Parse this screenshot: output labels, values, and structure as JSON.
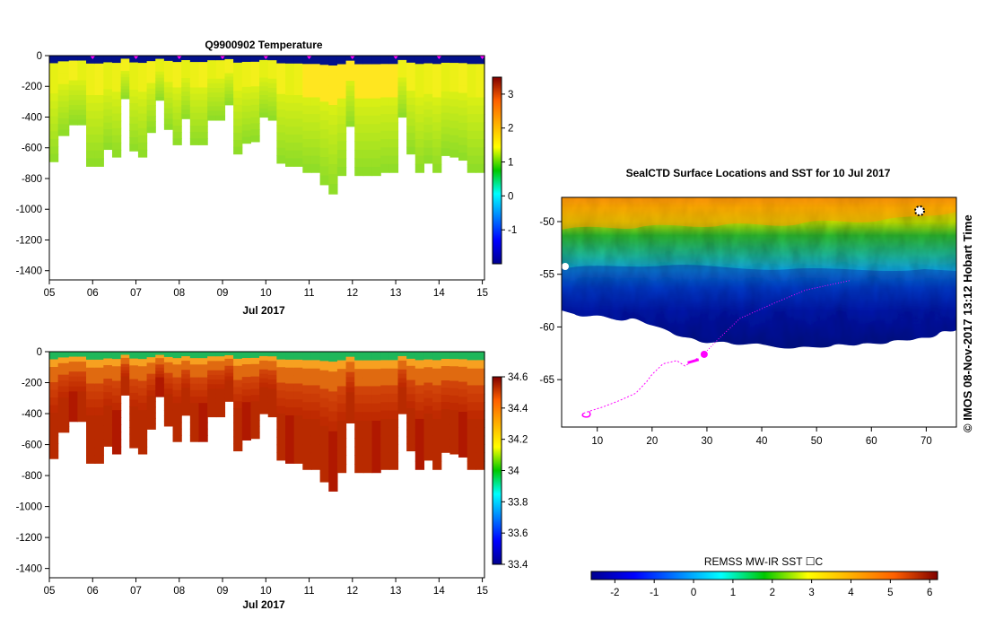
{
  "chart_data": [
    {
      "type": "heatmap",
      "id": "temp",
      "title": "Q9900902  Temperature",
      "xlabel": "Jul 2017",
      "ylabel": "",
      "x_ticks": [
        "05",
        "06",
        "07",
        "08",
        "09",
        "10",
        "11",
        "12",
        "13",
        "14",
        "15"
      ],
      "xlim": [
        5,
        15.05
      ],
      "y_ticks": [
        "0",
        "-200",
        "-400",
        "-600",
        "-800",
        "-1000",
        "-1200",
        "-1400"
      ],
      "ylim": [
        -1460,
        0
      ],
      "colorbar": {
        "ticks": [
          "-1",
          "0",
          "1",
          "2",
          "3"
        ],
        "range": [
          -2.0,
          3.5
        ]
      },
      "profile_days": [
        5.0,
        5.2,
        5.45,
        5.65,
        5.85,
        6.05,
        6.25,
        6.45,
        6.65,
        6.85,
        7.05,
        7.25,
        7.45,
        7.65,
        7.85,
        8.05,
        8.25,
        8.45,
        8.65,
        8.85,
        9.05,
        9.25,
        9.45,
        9.65,
        9.85,
        10.05,
        10.25,
        10.45,
        10.65,
        10.85,
        11.05,
        11.25,
        11.45,
        11.65,
        11.85,
        12.05,
        12.25,
        12.45,
        12.65,
        12.85,
        13.05,
        13.25,
        13.45,
        13.65,
        13.85,
        14.05,
        14.25,
        14.45,
        14.65,
        14.85
      ],
      "profile_max_depth_m": [
        690,
        520,
        450,
        450,
        720,
        720,
        610,
        660,
        280,
        620,
        660,
        500,
        290,
        480,
        580,
        410,
        580,
        580,
        420,
        420,
        320,
        640,
        570,
        560,
        400,
        420,
        700,
        720,
        720,
        760,
        760,
        840,
        900,
        780,
        460,
        780,
        780,
        780,
        760,
        760,
        400,
        640,
        760,
        700,
        760,
        650,
        660,
        680,
        760,
        760
      ],
      "surface_temperature_c": -1.8,
      "deep_temperature_c": 1.2,
      "position_markers_days": [
        6.0,
        7.0,
        8.0,
        9.0,
        10.0,
        11.0,
        12.0,
        13.0,
        14.0,
        15.0
      ]
    },
    {
      "type": "heatmap",
      "id": "salinity",
      "title": "",
      "xlabel": "Jul 2017",
      "ylabel": "",
      "x_ticks": [
        "05",
        "06",
        "07",
        "08",
        "09",
        "10",
        "11",
        "12",
        "13",
        "14",
        "15"
      ],
      "xlim": [
        5,
        15.05
      ],
      "y_ticks": [
        "0",
        "-200",
        "-400",
        "-600",
        "-800",
        "-1000",
        "-1200",
        "-1400"
      ],
      "ylim": [
        -1460,
        0
      ],
      "colorbar": {
        "ticks": [
          "33.4",
          "33.6",
          "33.8",
          "34",
          "34.2",
          "34.4",
          "34.6"
        ],
        "range": [
          33.4,
          34.6
        ]
      },
      "profile_days": [
        5.0,
        5.2,
        5.45,
        5.65,
        5.85,
        6.05,
        6.25,
        6.45,
        6.65,
        6.85,
        7.05,
        7.25,
        7.45,
        7.65,
        7.85,
        8.05,
        8.25,
        8.45,
        8.65,
        8.85,
        9.05,
        9.25,
        9.45,
        9.65,
        9.85,
        10.05,
        10.25,
        10.45,
        10.65,
        10.85,
        11.05,
        11.25,
        11.45,
        11.65,
        11.85,
        12.05,
        12.25,
        12.45,
        12.65,
        12.85,
        13.05,
        13.25,
        13.45,
        13.65,
        13.85,
        14.05,
        14.25,
        14.45,
        14.65,
        14.85
      ],
      "profile_max_depth_m": [
        690,
        520,
        450,
        450,
        720,
        720,
        610,
        660,
        280,
        620,
        660,
        500,
        290,
        480,
        580,
        410,
        580,
        580,
        420,
        420,
        320,
        640,
        570,
        560,
        400,
        420,
        700,
        720,
        720,
        760,
        760,
        840,
        900,
        780,
        460,
        780,
        780,
        780,
        760,
        760,
        400,
        640,
        760,
        700,
        760,
        650,
        660,
        680,
        760,
        760
      ],
      "surface_salinity_psu": 33.95,
      "deep_salinity_psu": 34.6
    },
    {
      "type": "heatmap",
      "id": "sst-map",
      "title": "SealCTD Surface Locations and SST for 10 Jul 2017",
      "xlabel": "",
      "ylabel": "",
      "x_ticks": [
        "10",
        "20",
        "30",
        "40",
        "50",
        "60",
        "70"
      ],
      "xlim": [
        3.5,
        75.5
      ],
      "y_ticks": [
        "-50",
        "-55",
        "-60",
        "-65"
      ],
      "ylim": [
        -69.5,
        -47.7
      ],
      "colorbar": {
        "label": "REMSS MW-IR SST ☐C",
        "ticks": [
          "-2",
          "-1",
          "0",
          "1",
          "2",
          "3",
          "4",
          "5",
          "6"
        ],
        "range": [
          -2.6,
          6.2
        ]
      },
      "track_color": "#ff00ff",
      "track_lon_lat": [
        [
          7.5,
          -68.2
        ],
        [
          8.5,
          -68.0
        ],
        [
          11,
          -67.6
        ],
        [
          14,
          -67.0
        ],
        [
          17,
          -66.3
        ],
        [
          19,
          -65.2
        ],
        [
          20,
          -64.5
        ],
        [
          22,
          -63.5
        ],
        [
          24.5,
          -63.2
        ],
        [
          26,
          -63.7
        ],
        [
          27.5,
          -63.2
        ],
        [
          28.5,
          -62.9
        ]
      ],
      "track_current_position": [
        29.5,
        -62.6
      ]
    }
  ],
  "side_label": "©  IMOS 08-Nov-2017 13:12 Hobart Time"
}
